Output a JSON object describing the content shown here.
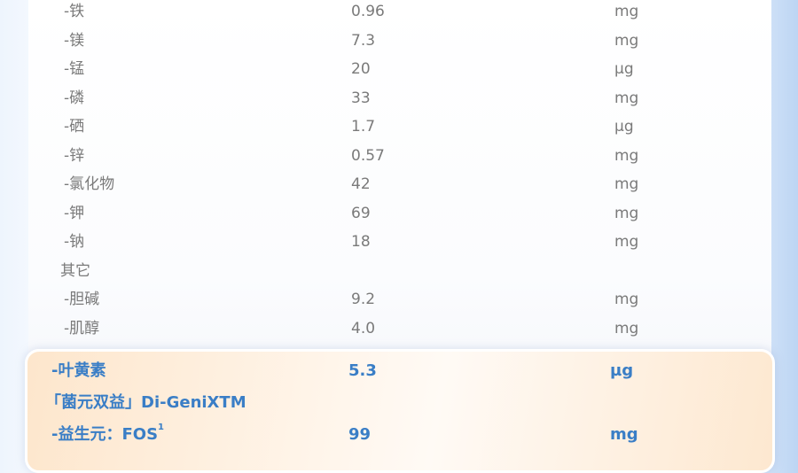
{
  "rows": [
    {
      "name": "-铁",
      "value": "0.96",
      "unit": "mg"
    },
    {
      "name": "-镁",
      "value": "7.3",
      "unit": "mg"
    },
    {
      "name": "-锰",
      "value": "20",
      "unit": "µg"
    },
    {
      "name": "-磷",
      "value": "33",
      "unit": "mg"
    },
    {
      "name": "-硒",
      "value": "1.7",
      "unit": "µg"
    },
    {
      "name": "-锌",
      "value": "0.57",
      "unit": "mg"
    },
    {
      "name": "-氯化物",
      "value": "42",
      "unit": "mg"
    },
    {
      "name": "-钾",
      "value": "69",
      "unit": "mg"
    },
    {
      "name": "-钠",
      "value": "18",
      "unit": "mg"
    },
    {
      "name": "其它",
      "value": "",
      "unit": ""
    },
    {
      "name": "-胆碱",
      "value": "9.2",
      "unit": "mg"
    },
    {
      "name": "-肌醇",
      "value": "4.0",
      "unit": "mg"
    }
  ],
  "highlight": {
    "rows": [
      {
        "name": "-叶黄素",
        "value": "5.3",
        "unit": "µg"
      },
      {
        "name": "「菌元双益」Di-GeniXTM",
        "value": "",
        "unit": ""
      },
      {
        "name": "-益生元：FOS",
        "sup": "1",
        "value": "99",
        "unit": "mg"
      }
    ],
    "accent": "#3a7ec6"
  }
}
